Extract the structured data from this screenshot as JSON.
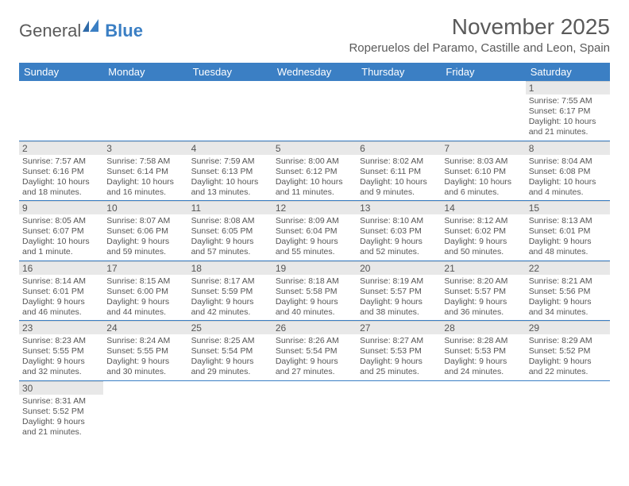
{
  "logo_text_1": "General",
  "logo_text_2": "Blue",
  "title": "November 2025",
  "location": "Roperuelos del Paramo, Castille and Leon, Spain",
  "colors": {
    "header_bg": "#3b7fc4",
    "header_fg": "#ffffff",
    "daynum_bg": "#e8e8e8",
    "border": "#3b7fc4",
    "text": "#555555",
    "background": "#ffffff"
  },
  "day_headers": [
    "Sunday",
    "Monday",
    "Tuesday",
    "Wednesday",
    "Thursday",
    "Friday",
    "Saturday"
  ],
  "weeks": [
    [
      null,
      null,
      null,
      null,
      null,
      null,
      {
        "n": "1",
        "sr": "7:55 AM",
        "ss": "6:17 PM",
        "dl": "10 hours and 21 minutes."
      }
    ],
    [
      {
        "n": "2",
        "sr": "7:57 AM",
        "ss": "6:16 PM",
        "dl": "10 hours and 18 minutes."
      },
      {
        "n": "3",
        "sr": "7:58 AM",
        "ss": "6:14 PM",
        "dl": "10 hours and 16 minutes."
      },
      {
        "n": "4",
        "sr": "7:59 AM",
        "ss": "6:13 PM",
        "dl": "10 hours and 13 minutes."
      },
      {
        "n": "5",
        "sr": "8:00 AM",
        "ss": "6:12 PM",
        "dl": "10 hours and 11 minutes."
      },
      {
        "n": "6",
        "sr": "8:02 AM",
        "ss": "6:11 PM",
        "dl": "10 hours and 9 minutes."
      },
      {
        "n": "7",
        "sr": "8:03 AM",
        "ss": "6:10 PM",
        "dl": "10 hours and 6 minutes."
      },
      {
        "n": "8",
        "sr": "8:04 AM",
        "ss": "6:08 PM",
        "dl": "10 hours and 4 minutes."
      }
    ],
    [
      {
        "n": "9",
        "sr": "8:05 AM",
        "ss": "6:07 PM",
        "dl": "10 hours and 1 minute."
      },
      {
        "n": "10",
        "sr": "8:07 AM",
        "ss": "6:06 PM",
        "dl": "9 hours and 59 minutes."
      },
      {
        "n": "11",
        "sr": "8:08 AM",
        "ss": "6:05 PM",
        "dl": "9 hours and 57 minutes."
      },
      {
        "n": "12",
        "sr": "8:09 AM",
        "ss": "6:04 PM",
        "dl": "9 hours and 55 minutes."
      },
      {
        "n": "13",
        "sr": "8:10 AM",
        "ss": "6:03 PM",
        "dl": "9 hours and 52 minutes."
      },
      {
        "n": "14",
        "sr": "8:12 AM",
        "ss": "6:02 PM",
        "dl": "9 hours and 50 minutes."
      },
      {
        "n": "15",
        "sr": "8:13 AM",
        "ss": "6:01 PM",
        "dl": "9 hours and 48 minutes."
      }
    ],
    [
      {
        "n": "16",
        "sr": "8:14 AM",
        "ss": "6:01 PM",
        "dl": "9 hours and 46 minutes."
      },
      {
        "n": "17",
        "sr": "8:15 AM",
        "ss": "6:00 PM",
        "dl": "9 hours and 44 minutes."
      },
      {
        "n": "18",
        "sr": "8:17 AM",
        "ss": "5:59 PM",
        "dl": "9 hours and 42 minutes."
      },
      {
        "n": "19",
        "sr": "8:18 AM",
        "ss": "5:58 PM",
        "dl": "9 hours and 40 minutes."
      },
      {
        "n": "20",
        "sr": "8:19 AM",
        "ss": "5:57 PM",
        "dl": "9 hours and 38 minutes."
      },
      {
        "n": "21",
        "sr": "8:20 AM",
        "ss": "5:57 PM",
        "dl": "9 hours and 36 minutes."
      },
      {
        "n": "22",
        "sr": "8:21 AM",
        "ss": "5:56 PM",
        "dl": "9 hours and 34 minutes."
      }
    ],
    [
      {
        "n": "23",
        "sr": "8:23 AM",
        "ss": "5:55 PM",
        "dl": "9 hours and 32 minutes."
      },
      {
        "n": "24",
        "sr": "8:24 AM",
        "ss": "5:55 PM",
        "dl": "9 hours and 30 minutes."
      },
      {
        "n": "25",
        "sr": "8:25 AM",
        "ss": "5:54 PM",
        "dl": "9 hours and 29 minutes."
      },
      {
        "n": "26",
        "sr": "8:26 AM",
        "ss": "5:54 PM",
        "dl": "9 hours and 27 minutes."
      },
      {
        "n": "27",
        "sr": "8:27 AM",
        "ss": "5:53 PM",
        "dl": "9 hours and 25 minutes."
      },
      {
        "n": "28",
        "sr": "8:28 AM",
        "ss": "5:53 PM",
        "dl": "9 hours and 24 minutes."
      },
      {
        "n": "29",
        "sr": "8:29 AM",
        "ss": "5:52 PM",
        "dl": "9 hours and 22 minutes."
      }
    ],
    [
      {
        "n": "30",
        "sr": "8:31 AM",
        "ss": "5:52 PM",
        "dl": "9 hours and 21 minutes."
      },
      null,
      null,
      null,
      null,
      null,
      null
    ]
  ],
  "labels": {
    "sunrise": "Sunrise:",
    "sunset": "Sunset:",
    "daylight": "Daylight:"
  }
}
